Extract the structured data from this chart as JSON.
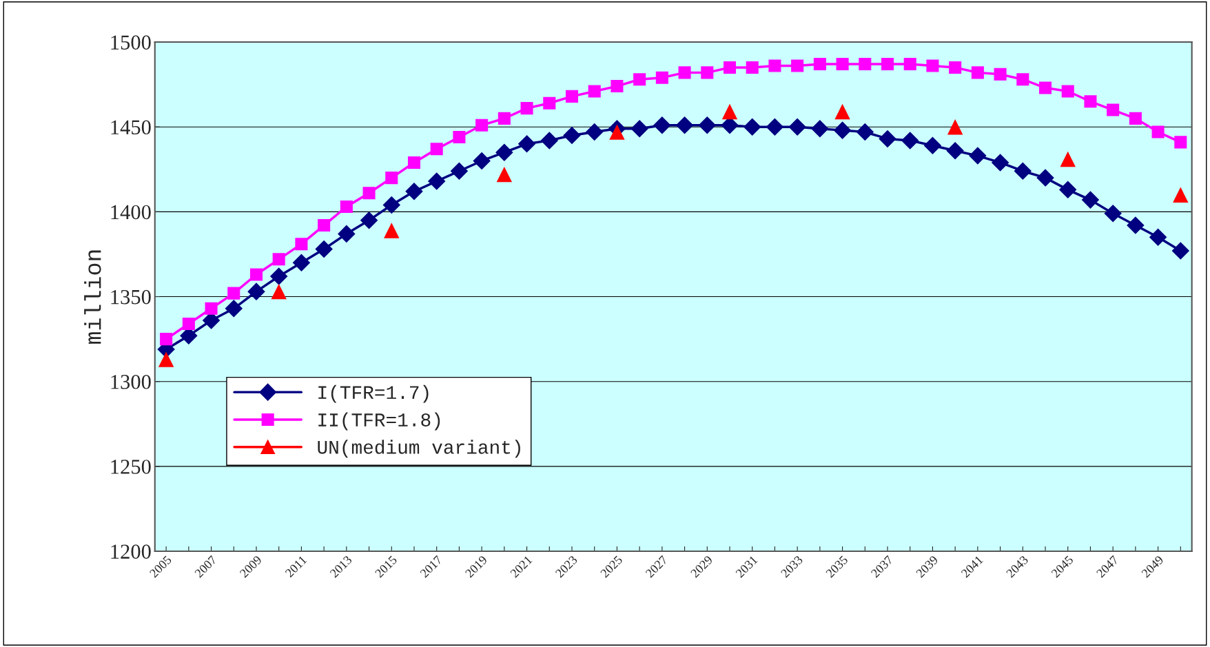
{
  "chart_data": {
    "type": "line",
    "ylabel": "million",
    "categories": [
      "2005",
      null,
      "2007",
      null,
      "2009",
      null,
      "2011",
      null,
      "2013",
      null,
      "2015",
      null,
      "2017",
      null,
      "2019",
      null,
      "2021",
      null,
      "2023",
      null,
      "2025",
      null,
      "2027",
      null,
      "2029",
      null,
      "2031",
      null,
      "2033",
      null,
      "2035",
      null,
      "2037",
      null,
      "2039",
      null,
      "2041",
      null,
      "2043",
      null,
      "2045",
      null,
      "2047",
      null,
      "2049",
      null
    ],
    "series": [
      {
        "name": "I(TFR=1.7)",
        "color": "#000080",
        "marker": "diamond",
        "values": [
          1319,
          1327,
          1336,
          1343,
          1353,
          1362,
          1370,
          1378,
          1387,
          1395,
          1404,
          1412,
          1418,
          1424,
          1430,
          1435,
          1440,
          1442,
          1445,
          1447,
          1449,
          1449,
          1451,
          1451,
          1451,
          1451,
          1450,
          1450,
          1450,
          1449,
          1448,
          1447,
          1443,
          1442,
          1439,
          1436,
          1433,
          1429,
          1424,
          1420,
          1413,
          1407,
          1399,
          1392,
          1385,
          1377
        ]
      },
      {
        "name": "II(TFR=1.8)",
        "color": "#ff00ff",
        "marker": "square",
        "values": [
          1325,
          1334,
          1343,
          1352,
          1363,
          1372,
          1381,
          1392,
          1403,
          1411,
          1420,
          1429,
          1437,
          1444,
          1451,
          1455,
          1461,
          1464,
          1468,
          1471,
          1474,
          1478,
          1479,
          1482,
          1482,
          1485,
          1485,
          1486,
          1486,
          1487,
          1487,
          1487,
          1487,
          1487,
          1486,
          1485,
          1482,
          1481,
          1478,
          1473,
          1471,
          1465,
          1460,
          1455,
          1447,
          1441
        ]
      },
      {
        "name": "UN(medium variant)",
        "type": "scatter",
        "color": "#ff0000",
        "marker": "triangle",
        "values": [
          1313,
          null,
          null,
          null,
          null,
          1353,
          null,
          null,
          null,
          null,
          1389,
          null,
          null,
          null,
          null,
          1422,
          null,
          null,
          null,
          null,
          1447,
          null,
          null,
          null,
          null,
          1459,
          null,
          null,
          null,
          null,
          1459,
          null,
          null,
          null,
          null,
          1450,
          null,
          null,
          null,
          null,
          1431,
          null,
          null,
          null,
          null,
          1410
        ]
      }
    ],
    "ylim": [
      1200,
      1500
    ],
    "yticks": [
      1200,
      1250,
      1300,
      1350,
      1400,
      1450,
      1500
    ],
    "grid": "y",
    "legend": "bottom left"
  }
}
